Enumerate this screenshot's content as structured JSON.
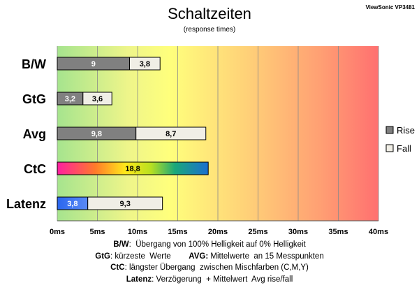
{
  "brand": "ViewSonic VP3481",
  "chart_data": {
    "type": "bar",
    "title": "Schaltzeiten",
    "subtitle": "(response times)",
    "xlim": [
      0,
      40
    ],
    "x_ticks": [
      "0ms",
      "5ms",
      "10ms",
      "15ms",
      "20ms",
      "25ms",
      "30ms",
      "35ms",
      "40ms"
    ],
    "categories": [
      "B/W",
      "GtG",
      "Avg",
      "CtC",
      "Latenz"
    ],
    "series": [
      {
        "name": "Rise",
        "values": [
          9,
          3.2,
          9.8,
          18.8,
          3.8
        ],
        "labels": [
          "9",
          "3,2",
          "9,8",
          "18,8",
          "3,8"
        ],
        "color": "#808080"
      },
      {
        "name": "Fall",
        "values": [
          3.8,
          3.6,
          8.7,
          null,
          9.3
        ],
        "labels": [
          "3,8",
          "3,6",
          "8,7",
          "",
          "9,3"
        ],
        "color": "#f0eee6"
      }
    ],
    "stacked": true,
    "legend": "right",
    "grid": true
  },
  "notes": [
    {
      "parts": [
        {
          "b": "B/W"
        },
        {
          "t": ":  Übergang von 100% Helligkeit auf 0% Helligkeit"
        }
      ]
    },
    {
      "parts": [
        {
          "b": "GtG"
        },
        {
          "t": ": kürzeste  Werte        "
        },
        {
          "b": "AVG:"
        },
        {
          "t": " Mittelwerte  an 15 Messpunkten"
        }
      ]
    },
    {
      "parts": [
        {
          "b": "CtC"
        },
        {
          "t": ": längster Übergang  zwischen Mischfarben (C,M,Y)"
        }
      ]
    },
    {
      "parts": [
        {
          "b": "Latenz"
        },
        {
          "t": ": Verzögerung  + Mittelwert  Avg rise/fall"
        }
      ]
    }
  ]
}
